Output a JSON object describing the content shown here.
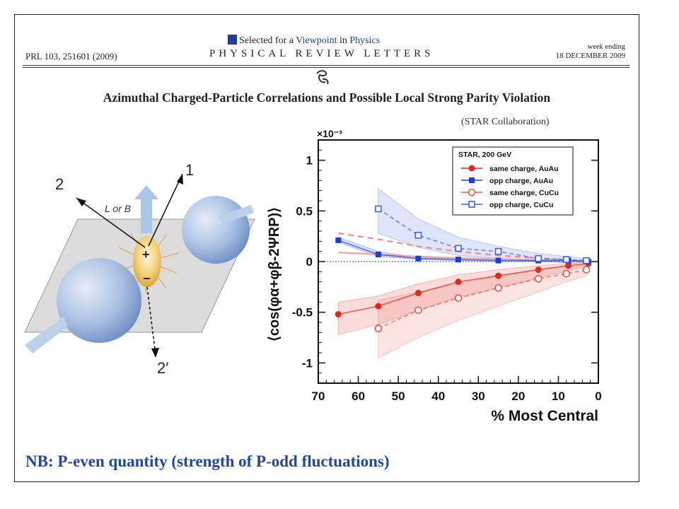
{
  "header": {
    "citation": "PRL 103, 251601 (2009)",
    "viewpoint_prefix": "Selected for a",
    "viewpoint_word": "Viewpoint",
    "viewpoint_mid": "in",
    "viewpoint_journal": "Physics",
    "journal": "PHYSICAL REVIEW LETTERS",
    "week_ending": "week ending",
    "date": "18 DECEMBER 2009"
  },
  "paper": {
    "title": "Azimuthal Charged-Particle Correlations and Possible Local Strong Parity Violation",
    "collaboration": "(STAR Collaboration)"
  },
  "illustration": {
    "label_1": "1",
    "label_2": "2",
    "label_2prime": "2′",
    "label_field": "L or B",
    "plus": "+",
    "minus": "−"
  },
  "footer": {
    "note": "NB: P-even quantity (strength of P-odd fluctuations)"
  },
  "chart_data": {
    "type": "scatter",
    "xlabel": "% Most Central",
    "ylabel": "⟨cos(φα+φβ-2ΨRP)⟩",
    "y_multiplier": "×10⁻³",
    "xlim": [
      70,
      0
    ],
    "ylim": [
      -1.2,
      1.2
    ],
    "xticks": [
      70,
      60,
      50,
      40,
      30,
      20,
      10,
      0
    ],
    "yticks": [
      -1,
      -0.5,
      0,
      0.5,
      1
    ],
    "legend_title": "STAR, 200 GeV",
    "legend_position": "top-right",
    "series": [
      {
        "name": "same charge, AuAu",
        "color": "#e02a1b",
        "marker": "filled-circle",
        "x": [
          65,
          55,
          45,
          35,
          25,
          15,
          7.5,
          2.5
        ],
        "y": [
          -0.52,
          -0.44,
          -0.31,
          -0.2,
          -0.14,
          -0.08,
          -0.04,
          -0.02
        ],
        "band_low": [
          -0.72,
          -0.62,
          -0.48,
          -0.35,
          -0.26,
          -0.16,
          -0.09,
          -0.04
        ],
        "band_high": [
          -0.4,
          -0.34,
          -0.22,
          -0.13,
          -0.08,
          -0.04,
          -0.02,
          -0.01
        ]
      },
      {
        "name": "opp charge, AuAu",
        "color": "#1b3fd6",
        "marker": "filled-square",
        "x": [
          65,
          55,
          45,
          35,
          25,
          15,
          7.5,
          2.5
        ],
        "y": [
          0.21,
          0.07,
          0.03,
          0.02,
          0.01,
          0.01,
          0.01,
          0.0
        ],
        "band_low": [
          0.19,
          0.05,
          0.02,
          0.01,
          0.0,
          0.0,
          0.0,
          0.0
        ],
        "band_high": [
          0.24,
          0.1,
          0.04,
          0.03,
          0.02,
          0.02,
          0.01,
          0.01
        ]
      },
      {
        "name": "same charge, CuCu",
        "color": "#e8564a",
        "marker": "open-circle",
        "x": [
          55,
          45,
          35,
          25,
          15,
          8,
          3
        ],
        "y": [
          -0.66,
          -0.48,
          -0.36,
          -0.26,
          -0.17,
          -0.12,
          -0.08
        ],
        "band_low": [
          -0.95,
          -0.75,
          -0.58,
          -0.44,
          -0.3,
          -0.2,
          -0.14
        ],
        "band_high": [
          -0.38,
          -0.3,
          -0.22,
          -0.14,
          -0.08,
          -0.05,
          -0.03
        ]
      },
      {
        "name": "opp charge, CuCu",
        "color": "#3a5fe6",
        "marker": "open-square",
        "x": [
          55,
          45,
          35,
          25,
          15,
          8,
          3
        ],
        "y": [
          0.52,
          0.26,
          0.13,
          0.1,
          0.03,
          0.02,
          0.01
        ],
        "band_low": [
          0.28,
          0.14,
          0.06,
          0.03,
          0.0,
          -0.01,
          -0.01
        ],
        "band_high": [
          0.72,
          0.42,
          0.24,
          0.15,
          0.08,
          0.05,
          0.03
        ]
      }
    ],
    "model_curves": [
      {
        "color": "#f4a3a0",
        "style": "solid",
        "x": [
          65,
          55,
          45,
          35,
          25,
          15,
          5,
          2
        ],
        "y": [
          0.09,
          0.07,
          0.05,
          0.035,
          0.025,
          0.015,
          0.005,
          0.0
        ]
      },
      {
        "color": "#f08c86",
        "style": "dashed",
        "x": [
          65,
          55,
          45,
          35,
          25,
          15,
          5,
          2
        ],
        "y": [
          0.28,
          0.22,
          0.15,
          0.1,
          0.06,
          0.035,
          0.01,
          0.0
        ]
      }
    ]
  }
}
